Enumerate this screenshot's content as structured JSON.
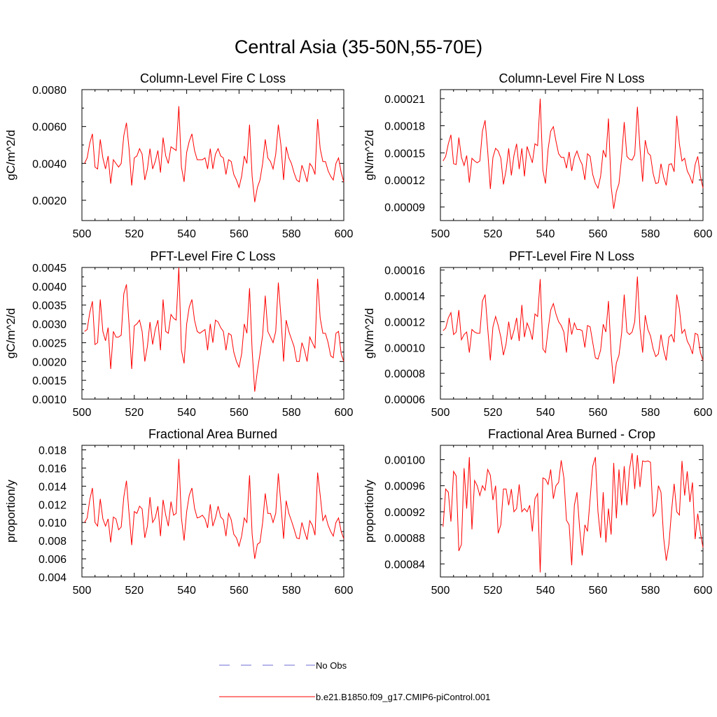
{
  "page_title": "Central Asia (35-50N,55-70E)",
  "legend": {
    "obs_label": "No Obs",
    "model_label": "b.e21.B1850.f09_g17.CMIP6-piControl.001",
    "obs_color": "#6b6bd6",
    "model_color": "#ff0000"
  },
  "chart_data": [
    {
      "id": "col-fire-c",
      "type": "line",
      "title": "Column-Level Fire C Loss",
      "ylabel": "gC/m^2/d",
      "xlim": [
        500,
        600
      ],
      "ylim": [
        0.0009,
        0.008
      ],
      "xticks": [
        500,
        520,
        540,
        560,
        580,
        600
      ],
      "yticks": [
        "0.0020",
        "0.0040",
        "0.0060",
        "0.0080"
      ],
      "ytick_values": [
        0.002,
        0.004,
        0.006,
        0.008
      ],
      "x_start": 501,
      "values": [
        0.004,
        0.0043,
        0.0051,
        0.0056,
        0.0038,
        0.0037,
        0.0053,
        0.0043,
        0.0037,
        0.0044,
        0.0029,
        0.0042,
        0.004,
        0.0038,
        0.004,
        0.0055,
        0.0062,
        0.0048,
        0.0028,
        0.0043,
        0.0044,
        0.0048,
        0.0045,
        0.0031,
        0.0037,
        0.0048,
        0.0037,
        0.0041,
        0.0047,
        0.0035,
        0.0054,
        0.0044,
        0.004,
        0.0049,
        0.0048,
        0.0047,
        0.0071,
        0.0038,
        0.003,
        0.0046,
        0.0052,
        0.0056,
        0.0047,
        0.0042,
        0.0042,
        0.0042,
        0.0043,
        0.0037,
        0.0048,
        0.0037,
        0.0045,
        0.0048,
        0.0044,
        0.0043,
        0.0034,
        0.0042,
        0.0041,
        0.0034,
        0.0031,
        0.0027,
        0.0033,
        0.0044,
        0.004,
        0.0061,
        0.0033,
        0.0019,
        0.0027,
        0.0031,
        0.004,
        0.0053,
        0.0043,
        0.0041,
        0.0037,
        0.0045,
        0.0061,
        0.005,
        0.0031,
        0.0049,
        0.0043,
        0.004,
        0.0035,
        0.0031,
        0.003,
        0.0039,
        0.0035,
        0.003,
        0.004,
        0.0038,
        0.0034,
        0.0064,
        0.0048,
        0.0041,
        0.0041,
        0.0036,
        0.0033,
        0.0031,
        0.004,
        0.0043,
        0.0035,
        0.003
      ]
    },
    {
      "id": "col-fire-n",
      "type": "line",
      "title": "Column-Level Fire N Loss",
      "ylabel": "gN/m^2/d",
      "xlim": [
        500,
        600
      ],
      "ylim": [
        7.5e-05,
        0.00022
      ],
      "xticks": [
        500,
        520,
        540,
        560,
        580,
        600
      ],
      "yticks": [
        "0.00009",
        "0.00012",
        "0.00015",
        "0.00018",
        "0.00021"
      ],
      "ytick_values": [
        9e-05,
        0.00012,
        0.00015,
        0.00018,
        0.00021
      ],
      "x_start": 501,
      "values": [
        0.000141,
        0.000146,
        0.00016,
        0.00017,
        0.000138,
        0.000137,
        0.000167,
        0.000145,
        0.000136,
        0.000147,
        0.000117,
        0.000144,
        0.000141,
        0.000139,
        0.000141,
        0.000174,
        0.000186,
        0.000152,
        0.00011,
        0.000145,
        0.000155,
        0.000152,
        0.000144,
        0.000115,
        0.000131,
        0.000155,
        0.000125,
        0.000147,
        0.00016,
        0.000132,
        0.000155,
        0.000124,
        0.000157,
        0.000148,
        0.000139,
        0.00016,
        0.000158,
        0.00021,
        0.000131,
        0.000116,
        0.000154,
        0.000174,
        0.000179,
        0.000163,
        0.000149,
        0.000145,
        0.000145,
        0.000133,
        0.000151,
        0.00013,
        0.000145,
        0.000152,
        0.000143,
        0.000137,
        0.00012,
        0.000149,
        0.000146,
        0.000126,
        0.000116,
        0.000111,
        0.000124,
        0.000153,
        0.000145,
        0.000188,
        0.000113,
        8.8e-05,
        0.000107,
        0.000116,
        0.000145,
        0.000184,
        0.000146,
        0.000143,
        0.000142,
        0.000148,
        0.000201,
        0.000155,
        0.000118,
        0.000164,
        0.00015,
        0.000147,
        0.000127,
        0.000116,
        0.000117,
        0.000138,
        0.000123,
        0.000114,
        0.000137,
        0.000138,
        0.000129,
        0.000191,
        0.00016,
        0.000141,
        0.000144,
        0.00013,
        0.000124,
        0.000116,
        0.000137,
        0.000146,
        0.000124,
        0.000111
      ]
    },
    {
      "id": "pft-fire-c",
      "type": "line",
      "title": "PFT-Level Fire C Loss",
      "ylabel": "gC/m^2/d",
      "xlim": [
        500,
        600
      ],
      "ylim": [
        0.001,
        0.0045
      ],
      "xticks": [
        500,
        520,
        540,
        560,
        580,
        600
      ],
      "yticks": [
        "0.0010",
        "0.0015",
        "0.0020",
        "0.0025",
        "0.0030",
        "0.0035",
        "0.0040",
        "0.0045"
      ],
      "ytick_values": [
        0.001,
        0.0015,
        0.002,
        0.0025,
        0.003,
        0.0035,
        0.004,
        0.0045
      ],
      "x_start": 501,
      "values": [
        0.0028,
        0.00285,
        0.0033,
        0.0036,
        0.00245,
        0.0025,
        0.00365,
        0.0028,
        0.00255,
        0.0029,
        0.0018,
        0.0028,
        0.00265,
        0.00265,
        0.0027,
        0.0038,
        0.00405,
        0.003,
        0.0018,
        0.00295,
        0.003,
        0.0031,
        0.0028,
        0.002,
        0.0024,
        0.00305,
        0.00245,
        0.00285,
        0.0031,
        0.0023,
        0.00365,
        0.0028,
        0.00275,
        0.00325,
        0.00315,
        0.0031,
        0.0045,
        0.0023,
        0.00195,
        0.003,
        0.00345,
        0.00365,
        0.0031,
        0.0028,
        0.00275,
        0.0028,
        0.00285,
        0.0023,
        0.003,
        0.0025,
        0.0031,
        0.00305,
        0.0029,
        0.0028,
        0.0023,
        0.00275,
        0.0027,
        0.00225,
        0.002,
        0.00185,
        0.0022,
        0.003,
        0.00275,
        0.00395,
        0.0023,
        0.0012,
        0.00175,
        0.0022,
        0.0027,
        0.00375,
        0.0028,
        0.00265,
        0.0025,
        0.0028,
        0.0041,
        0.0032,
        0.002,
        0.0031,
        0.0028,
        0.0026,
        0.0024,
        0.002,
        0.002,
        0.0025,
        0.0023,
        0.002,
        0.00265,
        0.0025,
        0.00235,
        0.0042,
        0.00315,
        0.00275,
        0.00275,
        0.0025,
        0.00215,
        0.0021,
        0.00275,
        0.0028,
        0.0022,
        0.002
      ]
    },
    {
      "id": "pft-fire-n",
      "type": "line",
      "title": "PFT-Level Fire N Loss",
      "ylabel": "gN/m^2/d",
      "xlim": [
        500,
        600
      ],
      "ylim": [
        6e-05,
        0.000162
      ],
      "xticks": [
        500,
        520,
        540,
        560,
        580,
        600
      ],
      "yticks": [
        "0.00006",
        "0.00008",
        "0.00010",
        "0.00012",
        "0.00014",
        "0.00016"
      ],
      "ytick_values": [
        6e-05,
        8e-05,
        0.0001,
        0.00012,
        0.00014,
        0.00016
      ],
      "x_start": 501,
      "values": [
        0.000113,
        0.000115,
        0.000123,
        0.000127,
        0.00011,
        0.000112,
        0.000129,
        0.000106,
        0.00011,
        0.000112,
        9.6e-05,
        0.000114,
        0.000112,
        0.000111,
        0.000111,
        0.000136,
        0.000141,
        0.000115,
        9e-05,
        0.000116,
        0.000124,
        0.000117,
        0.000108,
        9.4e-05,
        0.000103,
        0.00012,
        0.000106,
        0.000113,
        0.000123,
        0.000105,
        0.000133,
        0.000108,
        0.000119,
        0.000114,
        0.000106,
        0.000126,
        0.000124,
        0.000153,
        9.9e-05,
        9.6e-05,
        0.000114,
        0.000129,
        0.000134,
        0.000126,
        0.00012,
        0.000117,
        0.000112,
        9.6e-05,
        0.000123,
        0.00011,
        0.000119,
        0.000114,
        0.000114,
        0.000113,
        0.0001,
        0.000117,
        0.000116,
        0.000104,
        9.2e-05,
        9.1e-05,
        9.8e-05,
        0.000118,
        0.000112,
        0.000136,
        9.5e-05,
        7.2e-05,
        8.8e-05,
        9.4e-05,
        0.000111,
        0.000141,
        0.000112,
        0.00011,
        0.000112,
        0.00012,
        0.000155,
        0.000115,
        9.6e-05,
        0.000125,
        0.000114,
        0.000109,
        9.9e-05,
        9.3e-05,
        9.5e-05,
        0.00011,
        9.8e-05,
        9e-05,
        0.000108,
        0.00011,
        0.000104,
        0.000141,
        0.00013,
        0.000111,
        0.000114,
        0.000105,
        0.000101,
        9.5e-05,
        0.000111,
        0.00011,
        9.6e-05,
        9e-05
      ]
    },
    {
      "id": "frac-area-burned",
      "type": "line",
      "title": "Fractional Area Burned",
      "ylabel": "proportion/y",
      "xlim": [
        500,
        600
      ],
      "ylim": [
        0.004,
        0.0185
      ],
      "xticks": [
        500,
        520,
        540,
        560,
        580,
        600
      ],
      "yticks": [
        "0.004",
        "0.006",
        "0.008",
        "0.010",
        "0.012",
        "0.014",
        "0.016",
        "0.018"
      ],
      "ytick_values": [
        0.004,
        0.006,
        0.008,
        0.01,
        0.012,
        0.014,
        0.016,
        0.018
      ],
      "x_start": 501,
      "values": [
        0.01,
        0.0105,
        0.0125,
        0.0138,
        0.01,
        0.0096,
        0.0126,
        0.0104,
        0.0096,
        0.0104,
        0.0078,
        0.0106,
        0.0104,
        0.0092,
        0.0095,
        0.0128,
        0.0146,
        0.011,
        0.0075,
        0.0112,
        0.011,
        0.0118,
        0.0115,
        0.0083,
        0.0096,
        0.0128,
        0.01,
        0.0105,
        0.0118,
        0.0085,
        0.0125,
        0.0108,
        0.0096,
        0.0123,
        0.0108,
        0.011,
        0.017,
        0.0105,
        0.008,
        0.0112,
        0.013,
        0.0138,
        0.0116,
        0.0105,
        0.0106,
        0.0108,
        0.0104,
        0.0094,
        0.012,
        0.0096,
        0.0105,
        0.0118,
        0.0106,
        0.0103,
        0.0085,
        0.011,
        0.0103,
        0.0087,
        0.0083,
        0.0074,
        0.0085,
        0.0105,
        0.01,
        0.0152,
        0.0087,
        0.006,
        0.0076,
        0.0078,
        0.01,
        0.0132,
        0.011,
        0.011,
        0.01,
        0.011,
        0.0154,
        0.012,
        0.0082,
        0.0124,
        0.011,
        0.0102,
        0.0093,
        0.0083,
        0.0082,
        0.01,
        0.009,
        0.0081,
        0.0102,
        0.0097,
        0.0086,
        0.0155,
        0.013,
        0.0102,
        0.0108,
        0.0097,
        0.009,
        0.0085,
        0.01,
        0.0105,
        0.009,
        0.0082
      ]
    },
    {
      "id": "frac-area-burned-crop",
      "type": "line",
      "title": "Fractional Area Burned - Crop",
      "ylabel": "proportion/y",
      "xlim": [
        500,
        600
      ],
      "ylim": [
        0.00082,
        0.001022
      ],
      "xticks": [
        500,
        520,
        540,
        560,
        580,
        600
      ],
      "yticks": [
        "0.00084",
        "0.00088",
        "0.00092",
        "0.00096",
        "0.00100"
      ],
      "ytick_values": [
        0.00084,
        0.00088,
        0.00092,
        0.00096,
        0.001
      ],
      "x_start": 501,
      "values": [
        0.000897,
        0.000955,
        0.00095,
        0.000905,
        0.000982,
        0.000975,
        0.00086,
        0.00087,
        0.000987,
        0.000925,
        0.001004,
        0.000893,
        0.000968,
        0.00096,
        0.000945,
        0.00096,
        0.000953,
        0.000985,
        0.000976,
        0.000938,
        0.00096,
        0.000887,
        0.0009,
        0.000955,
        0.000955,
        0.00093,
        0.000955,
        0.00092,
        0.000925,
        0.000962,
        0.00092,
        0.000925,
        0.00092,
        0.00093,
        0.00089,
        0.00094,
        0.000948,
        0.000827,
        0.000972,
        0.00097,
        0.000962,
        0.000985,
        0.00094,
        0.00096,
        0.000965,
        0.000999,
        0.000972,
        0.000907,
        0.0009,
        0.000838,
        0.00093,
        0.00095,
        0.000895,
        0.000853,
        0.0009,
        0.00089,
        0.00094,
        0.00099,
        0.001004,
        0.00092,
        0.00088,
        0.00095,
        0.000873,
        0.000925,
        0.000885,
        0.000995,
        0.00091,
        0.000985,
        0.00093,
        0.00099,
        0.00093,
        0.000985,
        0.00101,
        0.000955,
        0.001007,
        0.000958,
        0.000998,
        0.000997,
        0.000998,
        0.000996,
        0.000913,
        0.00092,
        0.00096,
        0.00095,
        0.00088,
        0.000845,
        0.00087,
        0.00092,
        0.000963,
        0.00092,
        0.000915,
        0.000998,
        0.000945,
        0.000982,
        0.000935,
        0.000965,
        0.000878,
        0.000917,
        0.000888,
        0.000865
      ]
    }
  ]
}
